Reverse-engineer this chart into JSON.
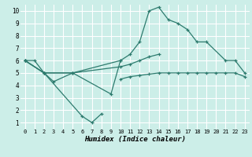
{
  "xlabel": "Humidex (Indice chaleur)",
  "bg_color": "#cceee8",
  "grid_color": "#ffffff",
  "line_color": "#2d7b6e",
  "xlim": [
    -0.5,
    23.5
  ],
  "ylim": [
    0.5,
    10.5
  ],
  "xticks": [
    0,
    1,
    2,
    3,
    4,
    5,
    6,
    7,
    8,
    9,
    10,
    11,
    12,
    13,
    14,
    15,
    16,
    17,
    18,
    19,
    20,
    21,
    22,
    23
  ],
  "yticks": [
    1,
    2,
    3,
    4,
    5,
    6,
    7,
    8,
    9,
    10
  ],
  "series": [
    {
      "x": [
        0,
        1,
        2,
        3,
        5,
        9,
        10
      ],
      "y": [
        6,
        6,
        5,
        4.3,
        5,
        3.3,
        6.0
      ]
    },
    {
      "x": [
        0,
        2,
        6,
        7,
        8
      ],
      "y": [
        6,
        5,
        1.5,
        1.0,
        1.7
      ]
    },
    {
      "x": [
        0,
        2,
        5,
        10,
        11,
        12,
        13,
        14,
        15,
        16,
        17,
        18,
        19,
        21,
        22,
        23
      ],
      "y": [
        6,
        5,
        5,
        6.0,
        6.5,
        7.5,
        10.0,
        10.3,
        9.3,
        9.0,
        8.5,
        7.5,
        7.5,
        6.0,
        6.0,
        5.0
      ]
    },
    {
      "x": [
        0,
        2,
        5,
        10,
        11,
        12,
        13,
        14
      ],
      "y": [
        6,
        5,
        5,
        5.5,
        5.7,
        6.0,
        6.3,
        6.5
      ]
    },
    {
      "x": [
        10,
        11,
        12,
        13,
        14,
        15,
        16,
        17,
        18,
        19,
        20,
        21,
        22,
        23
      ],
      "y": [
        4.5,
        4.7,
        4.8,
        4.9,
        5.0,
        5.0,
        5.0,
        5.0,
        5.0,
        5.0,
        5.0,
        5.0,
        5.0,
        4.7
      ]
    }
  ]
}
